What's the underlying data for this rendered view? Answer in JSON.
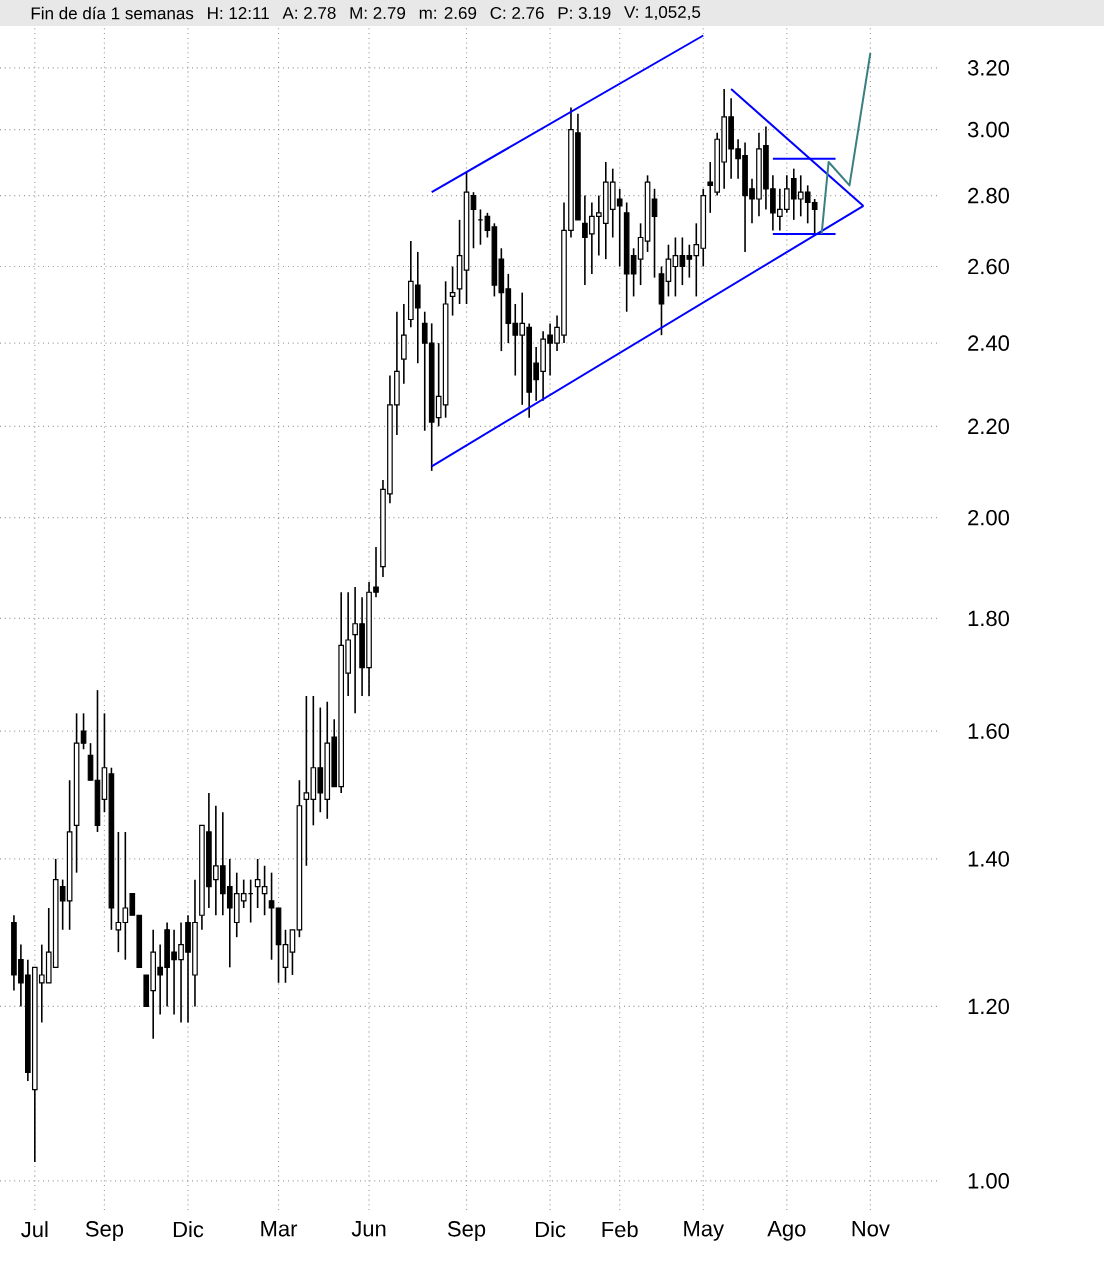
{
  "chart_data": {
    "type": "candlestick",
    "annotations": [
      "Fin de día 1 semanas",
      "H: 12:11",
      "A: 2.78",
      "M: 2.79",
      "m: 2.69",
      "C: 2.76",
      "P: 3.19",
      "V: 1,052,5"
    ],
    "categories": [
      null,
      null,
      null,
      "Jul",
      null,
      null,
      null,
      null,
      null,
      null,
      null,
      null,
      null,
      "Sep",
      null,
      null,
      null,
      null,
      null,
      null,
      null,
      null,
      null,
      null,
      null,
      "Dic",
      null,
      null,
      null,
      null,
      null,
      null,
      null,
      null,
      null,
      null,
      null,
      null,
      "Mar",
      null,
      null,
      null,
      null,
      null,
      null,
      null,
      null,
      null,
      null,
      null,
      null,
      "Jun",
      null,
      null,
      null,
      null,
      null,
      null,
      null,
      null,
      null,
      null,
      null,
      null,
      null,
      "Sep",
      null,
      null,
      null,
      null,
      null,
      null,
      null,
      null,
      null,
      null,
      null,
      "Dic",
      null,
      null,
      null,
      null,
      null,
      null,
      null,
      null,
      null,
      "Feb",
      null,
      null,
      null,
      null,
      null,
      null,
      null,
      null,
      null,
      null,
      null,
      "May",
      null,
      null,
      null,
      null,
      null,
      null,
      null,
      null,
      null,
      null,
      null,
      "Ago",
      null,
      null,
      null,
      null,
      null,
      null,
      null,
      null,
      null,
      null,
      null,
      "Nov"
    ],
    "ohlc": [
      [
        1.31,
        1.32,
        1.22,
        1.24
      ],
      [
        1.26,
        1.28,
        1.2,
        1.23
      ],
      [
        1.24,
        1.26,
        1.11,
        1.12
      ],
      [
        1.1,
        1.25,
        1.02,
        1.25
      ],
      [
        1.23,
        1.28,
        1.18,
        1.24
      ],
      [
        1.23,
        1.33,
        1.23,
        1.27
      ],
      [
        1.25,
        1.4,
        1.25,
        1.37
      ],
      [
        1.36,
        1.37,
        1.3,
        1.34
      ],
      [
        1.34,
        1.52,
        1.3,
        1.44
      ],
      [
        1.45,
        1.63,
        1.38,
        1.58
      ],
      [
        1.6,
        1.63,
        1.57,
        1.58
      ],
      [
        1.56,
        1.58,
        1.52,
        1.52
      ],
      [
        1.52,
        1.67,
        1.44,
        1.45
      ],
      [
        1.49,
        1.63,
        1.47,
        1.54
      ],
      [
        1.53,
        1.54,
        1.3,
        1.33
      ],
      [
        1.3,
        1.44,
        1.27,
        1.31
      ],
      [
        1.31,
        1.44,
        1.26,
        1.33
      ],
      [
        1.35,
        1.35,
        1.32,
        1.32
      ],
      [
        1.32,
        1.32,
        1.25,
        1.25
      ],
      [
        1.24,
        1.24,
        1.2,
        1.2
      ],
      [
        1.22,
        1.3,
        1.16,
        1.27
      ],
      [
        1.25,
        1.28,
        1.19,
        1.24
      ],
      [
        1.3,
        1.31,
        1.2,
        1.25
      ],
      [
        1.27,
        1.3,
        1.19,
        1.26
      ],
      [
        1.26,
        1.31,
        1.18,
        1.28
      ],
      [
        1.31,
        1.32,
        1.18,
        1.27
      ],
      [
        1.24,
        1.37,
        1.2,
        1.31
      ],
      [
        1.32,
        1.45,
        1.3,
        1.45
      ],
      [
        1.44,
        1.5,
        1.33,
        1.36
      ],
      [
        1.37,
        1.48,
        1.32,
        1.39
      ],
      [
        1.39,
        1.47,
        1.32,
        1.35
      ],
      [
        1.36,
        1.4,
        1.25,
        1.33
      ],
      [
        1.31,
        1.38,
        1.29,
        1.35
      ],
      [
        1.34,
        1.37,
        1.33,
        1.35
      ],
      [
        1.35,
        1.37,
        1.31,
        1.35
      ],
      [
        1.36,
        1.4,
        1.33,
        1.37
      ],
      [
        1.35,
        1.39,
        1.32,
        1.36
      ],
      [
        1.34,
        1.38,
        1.26,
        1.33
      ],
      [
        1.33,
        1.33,
        1.23,
        1.28
      ],
      [
        1.25,
        1.3,
        1.23,
        1.28
      ],
      [
        1.27,
        1.3,
        1.24,
        1.3
      ],
      [
        1.3,
        1.52,
        1.29,
        1.48
      ],
      [
        1.49,
        1.66,
        1.39,
        1.5
      ],
      [
        1.49,
        1.66,
        1.45,
        1.54
      ],
      [
        1.54,
        1.64,
        1.47,
        1.5
      ],
      [
        1.49,
        1.65,
        1.46,
        1.58
      ],
      [
        1.59,
        1.62,
        1.51,
        1.51
      ],
      [
        1.51,
        1.85,
        1.5,
        1.75
      ],
      [
        1.7,
        1.85,
        1.66,
        1.76
      ],
      [
        1.77,
        1.86,
        1.63,
        1.79
      ],
      [
        1.79,
        1.84,
        1.66,
        1.71
      ],
      [
        1.71,
        1.87,
        1.66,
        1.85
      ],
      [
        1.86,
        1.94,
        1.84,
        1.85
      ],
      [
        1.9,
        2.08,
        1.88,
        2.06
      ],
      [
        2.05,
        2.32,
        2.03,
        2.25
      ],
      [
        2.25,
        2.48,
        2.18,
        2.33
      ],
      [
        2.36,
        2.5,
        2.3,
        2.42
      ],
      [
        2.46,
        2.67,
        2.44,
        2.56
      ],
      [
        2.55,
        2.64,
        2.35,
        2.49
      ],
      [
        2.45,
        2.48,
        2.19,
        2.4
      ],
      [
        2.4,
        2.45,
        2.1,
        2.21
      ],
      [
        2.22,
        2.4,
        2.2,
        2.27
      ],
      [
        2.25,
        2.56,
        2.22,
        2.5
      ],
      [
        2.52,
        2.6,
        2.47,
        2.53
      ],
      [
        2.54,
        2.73,
        2.5,
        2.63
      ],
      [
        2.59,
        2.87,
        2.5,
        2.81
      ],
      [
        2.8,
        2.81,
        2.65,
        2.76
      ],
      [
        2.73,
        2.76,
        2.66,
        2.73
      ],
      [
        2.74,
        2.75,
        2.68,
        2.7
      ],
      [
        2.71,
        2.72,
        2.52,
        2.55
      ],
      [
        2.62,
        2.65,
        2.38,
        2.53
      ],
      [
        2.54,
        2.58,
        2.4,
        2.45
      ],
      [
        2.45,
        2.5,
        2.32,
        2.42
      ],
      [
        2.42,
        2.53,
        2.25,
        2.45
      ],
      [
        2.44,
        2.45,
        2.22,
        2.28
      ],
      [
        2.35,
        2.39,
        2.26,
        2.31
      ],
      [
        2.33,
        2.43,
        2.26,
        2.41
      ],
      [
        2.42,
        2.45,
        2.32,
        2.4
      ],
      [
        2.4,
        2.47,
        2.38,
        2.44
      ],
      [
        2.42,
        2.78,
        2.4,
        2.7
      ],
      [
        2.7,
        3.07,
        2.68,
        3.0
      ],
      [
        2.99,
        3.05,
        2.73,
        2.73
      ],
      [
        2.72,
        2.8,
        2.55,
        2.68
      ],
      [
        2.69,
        2.78,
        2.58,
        2.74
      ],
      [
        2.74,
        2.8,
        2.63,
        2.75
      ],
      [
        2.72,
        2.9,
        2.62,
        2.84
      ],
      [
        2.76,
        2.88,
        2.68,
        2.84
      ],
      [
        2.79,
        2.82,
        2.6,
        2.77
      ],
      [
        2.75,
        2.78,
        2.48,
        2.58
      ],
      [
        2.63,
        2.65,
        2.52,
        2.58
      ],
      [
        2.62,
        2.72,
        2.55,
        2.68
      ],
      [
        2.67,
        2.86,
        2.64,
        2.84
      ],
      [
        2.79,
        2.82,
        2.57,
        2.74
      ],
      [
        2.58,
        2.6,
        2.42,
        2.5
      ],
      [
        2.56,
        2.66,
        2.52,
        2.62
      ],
      [
        2.6,
        2.68,
        2.52,
        2.63
      ],
      [
        2.63,
        2.68,
        2.55,
        2.6
      ],
      [
        2.63,
        2.66,
        2.57,
        2.62
      ],
      [
        2.63,
        2.72,
        2.52,
        2.66
      ],
      [
        2.65,
        2.82,
        2.6,
        2.8
      ],
      [
        2.84,
        2.9,
        2.75,
        2.83
      ],
      [
        2.81,
        2.99,
        2.8,
        2.97
      ],
      [
        2.9,
        3.13,
        2.82,
        3.04
      ],
      [
        3.04,
        3.1,
        2.85,
        2.94
      ],
      [
        2.94,
        2.97,
        2.85,
        2.91
      ],
      [
        2.92,
        2.96,
        2.64,
        2.8
      ],
      [
        2.82,
        2.85,
        2.72,
        2.79
      ],
      [
        2.79,
        2.99,
        2.74,
        2.94
      ],
      [
        2.95,
        3.01,
        2.76,
        2.82
      ],
      [
        2.82,
        2.86,
        2.7,
        2.75
      ],
      [
        2.74,
        2.82,
        2.7,
        2.76
      ],
      [
        2.76,
        2.86,
        2.75,
        2.82
      ],
      [
        2.85,
        2.88,
        2.73,
        2.79
      ],
      [
        2.79,
        2.86,
        2.74,
        2.81
      ],
      [
        2.81,
        2.83,
        2.72,
        2.78
      ],
      [
        2.78,
        2.79,
        2.69,
        2.76
      ],
      null,
      null,
      null,
      null,
      null,
      null,
      null,
      null
    ],
    "series": [
      {
        "type": "line",
        "color": "#0000ff",
        "values": [
          null,
          null,
          null,
          null,
          null,
          null,
          null,
          null,
          null,
          null,
          null,
          null,
          null,
          null,
          null,
          null,
          null,
          null,
          null,
          null,
          null,
          null,
          null,
          null,
          null,
          null,
          null,
          null,
          null,
          null,
          null,
          null,
          null,
          null,
          null,
          null,
          null,
          null,
          null,
          null,
          null,
          null,
          null,
          null,
          null,
          null,
          null,
          null,
          null,
          null,
          null,
          null,
          null,
          null,
          null,
          null,
          null,
          null,
          null,
          null,
          2.81,
          null,
          null,
          null,
          null,
          null,
          null,
          null,
          null,
          null,
          null,
          null,
          null,
          null,
          null,
          null,
          null,
          null,
          null,
          null,
          null,
          null,
          null,
          null,
          null,
          null,
          null,
          null,
          null,
          null,
          null,
          null,
          null,
          null,
          null,
          null,
          null,
          null,
          null,
          3.31,
          null,
          null,
          null,
          null,
          null,
          null,
          null,
          null,
          null,
          null,
          null,
          null,
          null,
          null,
          null,
          null,
          null,
          null,
          null,
          null,
          null,
          null,
          null,
          null
        ]
      },
      {
        "type": "line",
        "color": "#0000ff",
        "values": [
          null,
          null,
          null,
          null,
          null,
          null,
          null,
          null,
          null,
          null,
          null,
          null,
          null,
          null,
          null,
          null,
          null,
          null,
          null,
          null,
          null,
          null,
          null,
          null,
          null,
          null,
          null,
          null,
          null,
          null,
          null,
          null,
          null,
          null,
          null,
          null,
          null,
          null,
          null,
          null,
          null,
          null,
          null,
          null,
          null,
          null,
          null,
          null,
          null,
          null,
          null,
          null,
          null,
          null,
          null,
          null,
          null,
          null,
          null,
          null,
          2.11,
          null,
          null,
          null,
          null,
          null,
          null,
          null,
          null,
          null,
          null,
          null,
          null,
          null,
          null,
          null,
          null,
          null,
          null,
          null,
          null,
          null,
          null,
          null,
          null,
          null,
          null,
          null,
          null,
          null,
          null,
          null,
          null,
          null,
          null,
          null,
          null,
          null,
          null,
          null,
          null,
          null,
          null,
          null,
          null,
          null,
          null,
          null,
          null,
          null,
          null,
          null,
          null,
          null,
          null,
          null,
          null,
          null,
          null,
          null,
          null,
          null,
          2.77,
          null
        ]
      },
      {
        "type": "line",
        "color": "#0000ff",
        "values": [
          null,
          null,
          null,
          null,
          null,
          null,
          null,
          null,
          null,
          null,
          null,
          null,
          null,
          null,
          null,
          null,
          null,
          null,
          null,
          null,
          null,
          null,
          null,
          null,
          null,
          null,
          null,
          null,
          null,
          null,
          null,
          null,
          null,
          null,
          null,
          null,
          null,
          null,
          null,
          null,
          null,
          null,
          null,
          null,
          null,
          null,
          null,
          null,
          null,
          null,
          null,
          null,
          null,
          null,
          null,
          null,
          null,
          null,
          null,
          null,
          null,
          null,
          null,
          null,
          null,
          null,
          null,
          null,
          null,
          null,
          null,
          null,
          null,
          null,
          null,
          null,
          null,
          null,
          null,
          null,
          null,
          null,
          null,
          null,
          null,
          null,
          null,
          null,
          null,
          null,
          null,
          null,
          null,
          null,
          null,
          null,
          null,
          null,
          null,
          null,
          null,
          null,
          null,
          3.13,
          null,
          null,
          null,
          null,
          null,
          null,
          null,
          null,
          null,
          null,
          null,
          null,
          null,
          null,
          null,
          null,
          null,
          null,
          2.77,
          null
        ]
      },
      {
        "type": "line",
        "color": "#0000ff",
        "values": [
          null,
          null,
          null,
          null,
          null,
          null,
          null,
          null,
          null,
          null,
          null,
          null,
          null,
          null,
          null,
          null,
          null,
          null,
          null,
          null,
          null,
          null,
          null,
          null,
          null,
          null,
          null,
          null,
          null,
          null,
          null,
          null,
          null,
          null,
          null,
          null,
          null,
          null,
          null,
          null,
          null,
          null,
          null,
          null,
          null,
          null,
          null,
          null,
          null,
          null,
          null,
          null,
          null,
          null,
          null,
          null,
          null,
          null,
          null,
          null,
          null,
          null,
          null,
          null,
          null,
          null,
          null,
          null,
          null,
          null,
          null,
          null,
          null,
          null,
          null,
          null,
          null,
          null,
          null,
          null,
          null,
          null,
          null,
          null,
          null,
          null,
          null,
          null,
          null,
          null,
          null,
          null,
          null,
          null,
          null,
          null,
          null,
          null,
          null,
          null,
          null,
          null,
          null,
          null,
          null,
          null,
          null,
          null,
          null,
          2.91,
          null,
          null,
          null,
          null,
          null,
          null,
          null,
          null,
          2.91,
          null,
          null,
          null,
          null,
          null
        ]
      },
      {
        "type": "line",
        "color": "#0000ff",
        "values": [
          null,
          null,
          null,
          null,
          null,
          null,
          null,
          null,
          null,
          null,
          null,
          null,
          null,
          null,
          null,
          null,
          null,
          null,
          null,
          null,
          null,
          null,
          null,
          null,
          null,
          null,
          null,
          null,
          null,
          null,
          null,
          null,
          null,
          null,
          null,
          null,
          null,
          null,
          null,
          null,
          null,
          null,
          null,
          null,
          null,
          null,
          null,
          null,
          null,
          null,
          null,
          null,
          null,
          null,
          null,
          null,
          null,
          null,
          null,
          null,
          null,
          null,
          null,
          null,
          null,
          null,
          null,
          null,
          null,
          null,
          null,
          null,
          null,
          null,
          null,
          null,
          null,
          null,
          null,
          null,
          null,
          null,
          null,
          null,
          null,
          null,
          null,
          null,
          null,
          null,
          null,
          null,
          null,
          null,
          null,
          null,
          null,
          null,
          null,
          null,
          null,
          null,
          null,
          null,
          null,
          null,
          null,
          null,
          null,
          2.69,
          null,
          null,
          null,
          null,
          null,
          null,
          null,
          null,
          2.69,
          null,
          null,
          null,
          null,
          null
        ]
      },
      {
        "type": "line",
        "color": "#3a8080",
        "values": [
          null,
          null,
          null,
          null,
          null,
          null,
          null,
          null,
          null,
          null,
          null,
          null,
          null,
          null,
          null,
          null,
          null,
          null,
          null,
          null,
          null,
          null,
          null,
          null,
          null,
          null,
          null,
          null,
          null,
          null,
          null,
          null,
          null,
          null,
          null,
          null,
          null,
          null,
          null,
          null,
          null,
          null,
          null,
          null,
          null,
          null,
          null,
          null,
          null,
          null,
          null,
          null,
          null,
          null,
          null,
          null,
          null,
          null,
          null,
          null,
          null,
          null,
          null,
          null,
          null,
          null,
          null,
          null,
          null,
          null,
          null,
          null,
          null,
          null,
          null,
          null,
          null,
          null,
          null,
          null,
          null,
          null,
          null,
          null,
          null,
          null,
          null,
          null,
          null,
          null,
          null,
          null,
          null,
          null,
          null,
          null,
          null,
          null,
          null,
          null,
          null,
          null,
          null,
          null,
          null,
          null,
          null,
          null,
          null,
          null,
          null,
          null,
          null,
          null,
          null,
          null,
          2.69,
          2.9,
          null,
          null,
          2.83,
          null,
          null,
          3.25
        ]
      }
    ],
    "ylim": [
      0.97,
      3.35
    ],
    "yticks": [
      {
        "value": 1.0,
        "label": "1.00"
      },
      {
        "value": 1.2,
        "label": "1.20"
      },
      {
        "value": 1.4,
        "label": "1.40"
      },
      {
        "value": 1.6,
        "label": "1.60"
      },
      {
        "value": 1.8,
        "label": "1.80"
      },
      {
        "value": 2.0,
        "label": "2.00"
      },
      {
        "value": 2.2,
        "label": "2.20"
      },
      {
        "value": 2.4,
        "label": "2.40"
      },
      {
        "value": 2.6,
        "label": "2.60"
      },
      {
        "value": 2.8,
        "label": "2.80"
      },
      {
        "value": 3.0,
        "label": "3.00"
      },
      {
        "value": 3.2,
        "label": "3.20"
      }
    ],
    "log": true,
    "grid": true,
    "marker": "none",
    "line_style": "solid"
  }
}
